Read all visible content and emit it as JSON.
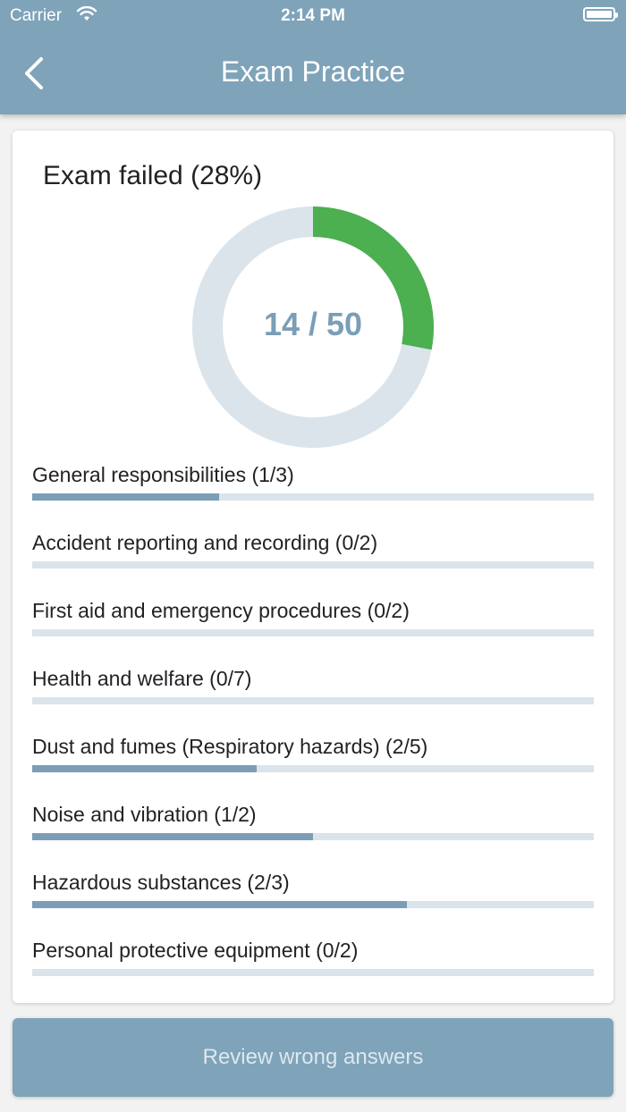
{
  "status_bar": {
    "carrier": "Carrier",
    "time": "2:14 PM"
  },
  "header": {
    "title": "Exam Practice"
  },
  "result": {
    "title": "Exam failed (28%)",
    "score_text": "14 / 50",
    "correct": 14,
    "total": 50,
    "ring_color": "#4caf50",
    "ring_track_color": "#dbe4ea"
  },
  "categories": [
    {
      "label": "General responsibilities (1/3)",
      "correct": 1,
      "total": 3
    },
    {
      "label": "Accident reporting and recording (0/2)",
      "correct": 0,
      "total": 2
    },
    {
      "label": "First aid and emergency procedures (0/2)",
      "correct": 0,
      "total": 2
    },
    {
      "label": "Health and welfare (0/7)",
      "correct": 0,
      "total": 7
    },
    {
      "label": "Dust and fumes (Respiratory hazards) (2/5)",
      "correct": 2,
      "total": 5
    },
    {
      "label": "Noise and vibration (1/2)",
      "correct": 1,
      "total": 2
    },
    {
      "label": "Hazardous substances (2/3)",
      "correct": 2,
      "total": 3
    },
    {
      "label": "Personal protective equipment (0/2)",
      "correct": 0,
      "total": 2
    }
  ],
  "footer": {
    "review_label": "Review wrong answers"
  },
  "colors": {
    "header": "#7fa3b9",
    "bar_fill": "#7b9eb6",
    "bar_track": "#dbe4ea"
  }
}
